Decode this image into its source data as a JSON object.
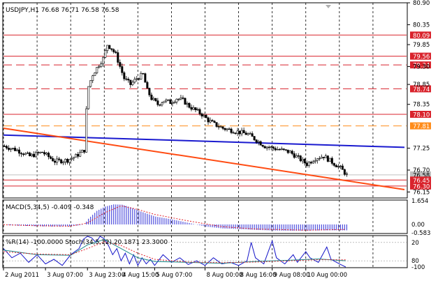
{
  "chart_data": [
    {
      "type": "candlestick",
      "title": "USDJPY,H1  76.68 76.71 76.58 76.58",
      "ylim": [
        76.0,
        80.9
      ],
      "y_ticks": [
        "80.90",
        "80.35",
        "79.85",
        "79.30",
        "78.85",
        "78.35",
        "77.25",
        "76.70",
        "76.15"
      ],
      "price_levels": [
        {
          "value": 80.09,
          "label": "80.09",
          "color": "#d9232c",
          "style": "solid"
        },
        {
          "value": 79.56,
          "label": "79.56",
          "color": "#d9232c",
          "style": "solid"
        },
        {
          "value": 79.34,
          "label": "79.34",
          "color": "#d9232c",
          "style": "dashed"
        },
        {
          "value": 78.74,
          "label": "78.74",
          "color": "#d9232c",
          "style": "dashed"
        },
        {
          "value": 78.1,
          "label": "78.10",
          "color": "#d9232c",
          "style": "solid"
        },
        {
          "value": 77.81,
          "label": "77.81",
          "color": "#ff8c1a",
          "style": "dashed"
        },
        {
          "value": 76.58,
          "label": "76.58",
          "color": "#c0c0c0",
          "style": "solid"
        },
        {
          "value": 76.45,
          "label": "76.45",
          "color": "#d9232c",
          "style": "solid"
        },
        {
          "value": 76.3,
          "label": "76.30",
          "color": "#d9232c",
          "style": "solid"
        }
      ],
      "trendlines": [
        {
          "name": "blue-trendline",
          "color": "#1a1acf",
          "from": [
            0,
            77.58
          ],
          "to": [
            191,
            77.27
          ]
        },
        {
          "name": "orange-trendline",
          "color": "#ff4b12",
          "from": [
            0,
            77.75
          ],
          "to": [
            191,
            76.21
          ]
        }
      ],
      "x_ticks": [
        {
          "index": 0,
          "label": "2 Aug 2011"
        },
        {
          "index": 20,
          "label": "3 Aug 07:00"
        },
        {
          "index": 40,
          "label": "3 Aug 23:00"
        },
        {
          "index": 56,
          "label": "4 Aug 15:00"
        },
        {
          "index": 72,
          "label": "5 Aug 07:00"
        },
        {
          "index": 96,
          "label": "8 Aug 00:00"
        },
        {
          "index": 112,
          "label": "8 Aug 16:00"
        },
        {
          "index": 128,
          "label": "9 Aug 08:00"
        },
        {
          "index": 144,
          "label": "10 Aug 00:00"
        }
      ],
      "vertical_grid_index": [
        0,
        16,
        32,
        48,
        64,
        80,
        96,
        112,
        128,
        144,
        160,
        176
      ],
      "price_path": [
        [
          0,
          77.3
        ],
        [
          6,
          77.2
        ],
        [
          12,
          77.05
        ],
        [
          18,
          77.15
        ],
        [
          24,
          76.92
        ],
        [
          30,
          76.95
        ],
        [
          34,
          77.05
        ],
        [
          38,
          77.2
        ],
        [
          39,
          78.2
        ],
        [
          40,
          78.8
        ],
        [
          42,
          79.1
        ],
        [
          45,
          79.35
        ],
        [
          47,
          79.5
        ],
        [
          49,
          79.85
        ],
        [
          51,
          79.75
        ],
        [
          53,
          79.6
        ],
        [
          55,
          79.3
        ],
        [
          57,
          79.0
        ],
        [
          60,
          78.85
        ],
        [
          63,
          79.0
        ],
        [
          66,
          79.1
        ],
        [
          68,
          78.7
        ],
        [
          70,
          78.5
        ],
        [
          73,
          78.35
        ],
        [
          76,
          78.45
        ],
        [
          79,
          78.4
        ],
        [
          82,
          78.5
        ],
        [
          85,
          78.45
        ],
        [
          88,
          78.3
        ],
        [
          91,
          78.2
        ],
        [
          94,
          78.1
        ],
        [
          97,
          77.95
        ],
        [
          100,
          77.85
        ],
        [
          104,
          77.75
        ],
        [
          108,
          77.7
        ],
        [
          112,
          77.65
        ],
        [
          116,
          77.6
        ],
        [
          120,
          77.45
        ],
        [
          124,
          77.3
        ],
        [
          128,
          77.25
        ],
        [
          132,
          77.2
        ],
        [
          136,
          77.15
        ],
        [
          140,
          77.0
        ],
        [
          144,
          76.85
        ],
        [
          148,
          77.0
        ],
        [
          152,
          77.05
        ],
        [
          156,
          76.9
        ],
        [
          160,
          76.75
        ],
        [
          163,
          76.58
        ]
      ]
    },
    {
      "type": "bar",
      "title": "MACD(5,34,5) -0.409 -0.348",
      "ylim": [
        -0.583,
        1.654
      ],
      "y_ticks": [
        "1.654",
        "0.00",
        "-0.583"
      ],
      "series": [
        {
          "name": "MACD",
          "type": "histogram",
          "values": [
            [
              0,
              -0.03
            ],
            [
              8,
              -0.08
            ],
            [
              16,
              -0.12
            ],
            [
              24,
              -0.14
            ],
            [
              32,
              -0.12
            ],
            [
              38,
              0.0
            ],
            [
              40,
              0.4
            ],
            [
              44,
              0.95
            ],
            [
              48,
              1.25
            ],
            [
              52,
              1.4
            ],
            [
              56,
              1.38
            ],
            [
              60,
              1.2
            ],
            [
              64,
              0.95
            ],
            [
              68,
              0.75
            ],
            [
              72,
              0.55
            ],
            [
              80,
              0.35
            ],
            [
              88,
              0.1
            ],
            [
              96,
              -0.15
            ],
            [
              104,
              -0.28
            ],
            [
              112,
              -0.32
            ],
            [
              120,
              -0.38
            ],
            [
              128,
              -0.42
            ],
            [
              136,
              -0.44
            ],
            [
              144,
              -0.43
            ],
            [
              152,
              -0.41
            ],
            [
              163,
              -0.409
            ]
          ]
        },
        {
          "name": "Signal",
          "type": "line",
          "color": "#e0202a",
          "values": [
            [
              0,
              -0.02
            ],
            [
              16,
              -0.09
            ],
            [
              32,
              -0.12
            ],
            [
              40,
              0.1
            ],
            [
              48,
              0.8
            ],
            [
              56,
              1.3
            ],
            [
              64,
              1.05
            ],
            [
              72,
              0.7
            ],
            [
              88,
              0.25
            ],
            [
              104,
              -0.15
            ],
            [
              120,
              -0.32
            ],
            [
              144,
              -0.4
            ],
            [
              163,
              -0.348
            ]
          ]
        }
      ]
    },
    {
      "type": "line",
      "title": "%R(14) -100.0000  Stoch(34,5,12) 20.1871 23.3000",
      "y_ticks": [
        "20",
        "80",
        "-100"
      ],
      "series": [
        {
          "name": "%R(14)",
          "color": "#1414c8",
          "values": [
            [
              0,
              -40
            ],
            [
              4,
              -70
            ],
            [
              8,
              -55
            ],
            [
              12,
              -85
            ],
            [
              16,
              -60
            ],
            [
              20,
              -90
            ],
            [
              24,
              -75
            ],
            [
              28,
              -95
            ],
            [
              32,
              -60
            ],
            [
              36,
              -40
            ],
            [
              38,
              -10
            ],
            [
              40,
              0
            ],
            [
              42,
              -5
            ],
            [
              44,
              -20
            ],
            [
              46,
              0
            ],
            [
              48,
              -8
            ],
            [
              50,
              -30
            ],
            [
              52,
              -60
            ],
            [
              54,
              -40
            ],
            [
              56,
              -80
            ],
            [
              58,
              -55
            ],
            [
              60,
              -90
            ],
            [
              62,
              -60
            ],
            [
              64,
              -95
            ],
            [
              66,
              -70
            ],
            [
              68,
              -90
            ],
            [
              70,
              -75
            ],
            [
              72,
              -95
            ],
            [
              76,
              -60
            ],
            [
              80,
              -85
            ],
            [
              84,
              -70
            ],
            [
              88,
              -92
            ],
            [
              92,
              -80
            ],
            [
              96,
              -95
            ],
            [
              100,
              -70
            ],
            [
              104,
              -90
            ],
            [
              108,
              -85
            ],
            [
              112,
              -95
            ],
            [
              116,
              -80
            ],
            [
              118,
              -20
            ],
            [
              120,
              -70
            ],
            [
              124,
              -90
            ],
            [
              128,
              -15
            ],
            [
              130,
              -70
            ],
            [
              134,
              -90
            ],
            [
              138,
              -60
            ],
            [
              140,
              -85
            ],
            [
              144,
              -50
            ],
            [
              146,
              -70
            ],
            [
              150,
              -85
            ],
            [
              154,
              -35
            ],
            [
              156,
              -75
            ],
            [
              160,
              -90
            ],
            [
              163,
              -100
            ]
          ]
        },
        {
          "name": "Stoch",
          "color": "#1a8a8a",
          "values": [
            [
              0,
              -45
            ],
            [
              16,
              -60
            ],
            [
              32,
              -62
            ],
            [
              40,
              -28
            ],
            [
              48,
              -10
            ],
            [
              56,
              -40
            ],
            [
              64,
              -70
            ],
            [
              72,
              -82
            ],
            [
              88,
              -85
            ],
            [
              104,
              -88
            ],
            [
              120,
              -82
            ],
            [
              136,
              -78
            ],
            [
              150,
              -74
            ],
            [
              163,
              -79.8
            ]
          ]
        },
        {
          "name": "Signal",
          "color": "#e0202a",
          "values": [
            [
              0,
              -50
            ],
            [
              16,
              -58
            ],
            [
              32,
              -60
            ],
            [
              40,
              -40
            ],
            [
              48,
              -18
            ],
            [
              56,
              -30
            ],
            [
              64,
              -55
            ],
            [
              72,
              -75
            ],
            [
              88,
              -84
            ],
            [
              104,
              -86
            ],
            [
              120,
              -84
            ],
            [
              136,
              -80
            ],
            [
              150,
              -76
            ],
            [
              163,
              -76.7
            ]
          ]
        }
      ]
    }
  ]
}
